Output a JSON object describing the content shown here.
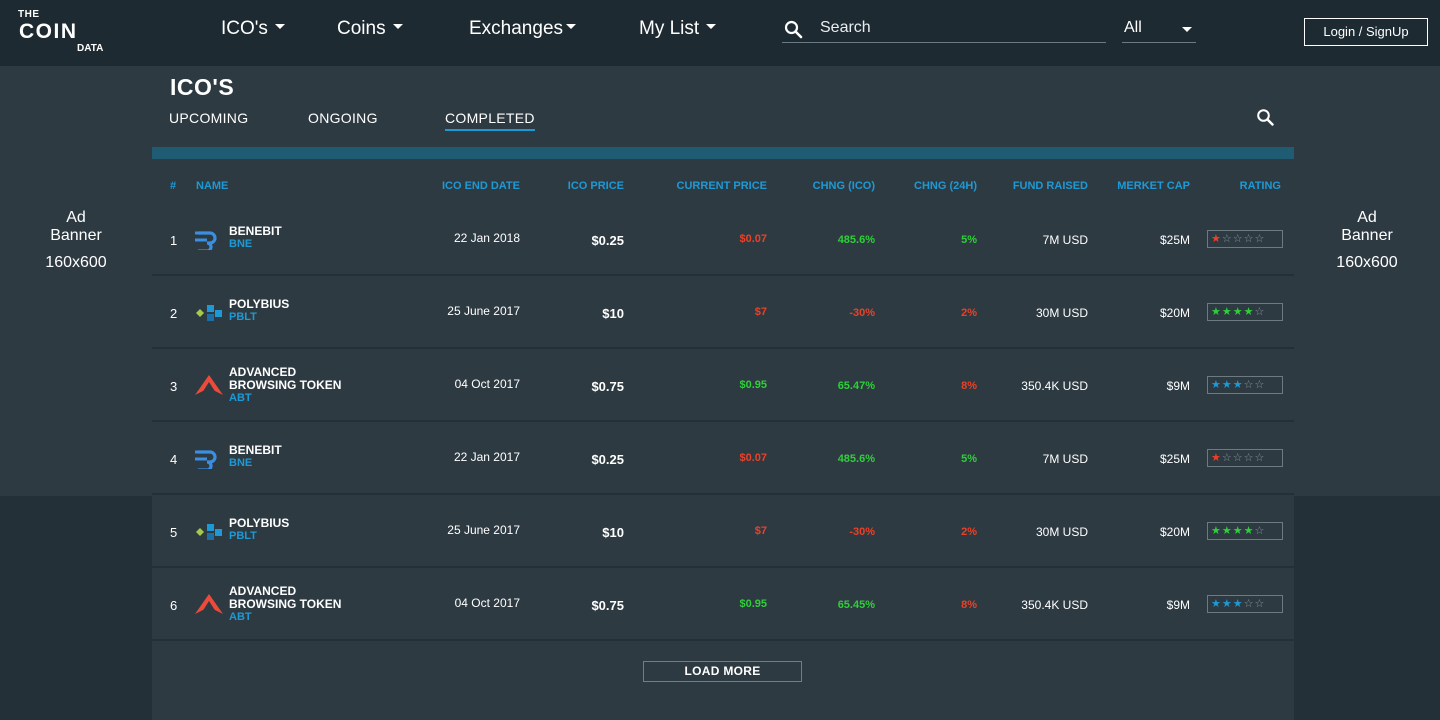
{
  "header": {
    "logo": {
      "the": "THE",
      "coin": "COIN",
      "data": "DATA"
    },
    "nav": [
      {
        "label": "ICO's"
      },
      {
        "label": "Coins"
      },
      {
        "label": "Exchanges"
      },
      {
        "label": "My List"
      }
    ],
    "search": {
      "placeholder": "Search"
    },
    "filter": {
      "selected": "All"
    },
    "login_label": "Login / SignUp"
  },
  "ads": {
    "left": {
      "line1": "Ad",
      "line2": "Banner",
      "size": "160x600"
    },
    "right": {
      "line1": "Ad",
      "line2": "Banner",
      "size": "160x600"
    }
  },
  "main": {
    "title": "ICO'S",
    "tabs": [
      {
        "label": "UPCOMING"
      },
      {
        "label": "ONGOING"
      },
      {
        "label": "COMPLETED",
        "active": true
      }
    ],
    "columns": [
      "#",
      "NAME",
      "ICO END DATE",
      "ICO PRICE",
      "CURRENT PRICE",
      "CHNG (ICO)",
      "CHNG (24H)",
      "FUND RAISED",
      "MERKET CAP",
      "RATING"
    ],
    "rows": [
      {
        "num": "1",
        "icon": "benebit-icon",
        "name1": "BENEBIT",
        "name2": "",
        "sym": "BNE",
        "date": "22 Jan 2018",
        "ico_price": "$0.25",
        "current_price": "$0.07",
        "chng_ico": "485.6%",
        "chng_24h": "5%",
        "fund": "7M USD",
        "cap": "$25M",
        "rating": 1,
        "rating_color": "#ec4026"
      },
      {
        "num": "2",
        "icon": "polybius-icon",
        "name1": "POLYBIUS",
        "name2": "",
        "sym": "PBLT",
        "date": "25 June 2017",
        "ico_price": "$10",
        "current_price": "$7",
        "chng_ico": "-30%",
        "chng_24h": "2%",
        "fund": "30M USD",
        "cap": "$20M",
        "rating": 4,
        "rating_color": "#2fcf3a"
      },
      {
        "num": "3",
        "icon": "abt-icon",
        "name1": "ADVANCED",
        "name2": "BROWSING TOKEN",
        "sym": "ABT",
        "date": "04 Oct 2017",
        "ico_price": "$0.75",
        "current_price": "$0.95",
        "chng_ico": "65.47%",
        "chng_24h": "8%",
        "fund": "350.4K USD",
        "cap": "$9M",
        "rating": 3,
        "rating_color": "#1d9ad6"
      },
      {
        "num": "4",
        "icon": "benebit-icon",
        "name1": "BENEBIT",
        "name2": "",
        "sym": "BNE",
        "date": "22 Jan 2017",
        "ico_price": "$0.25",
        "current_price": "$0.07",
        "chng_ico": "485.6%",
        "chng_24h": "5%",
        "fund": "7M USD",
        "cap": "$25M",
        "rating": 1,
        "rating_color": "#ec4026"
      },
      {
        "num": "5",
        "icon": "polybius-icon",
        "name1": "POLYBIUS",
        "name2": "",
        "sym": "PBLT",
        "date": "25 June 2017",
        "ico_price": "$10",
        "current_price": "$7",
        "chng_ico": "-30%",
        "chng_24h": "2%",
        "fund": "30M USD",
        "cap": "$20M",
        "rating": 4,
        "rating_color": "#2fcf3a"
      },
      {
        "num": "6",
        "icon": "abt-icon",
        "name1": "ADVANCED",
        "name2": "BROWSING TOKEN",
        "sym": "ABT",
        "date": "04 Oct 2017",
        "ico_price": "$0.75",
        "current_price": "$0.95",
        "chng_ico": "65.45%",
        "chng_24h": "8%",
        "fund": "350.4K USD",
        "cap": "$9M",
        "rating": 3,
        "rating_color": "#1d9ad6"
      }
    ],
    "load_more_label": "LOAD MORE"
  },
  "colors": {
    "accent": "#1d9ad6",
    "positive": "#2fcf3a",
    "negative": "#ec4026"
  }
}
